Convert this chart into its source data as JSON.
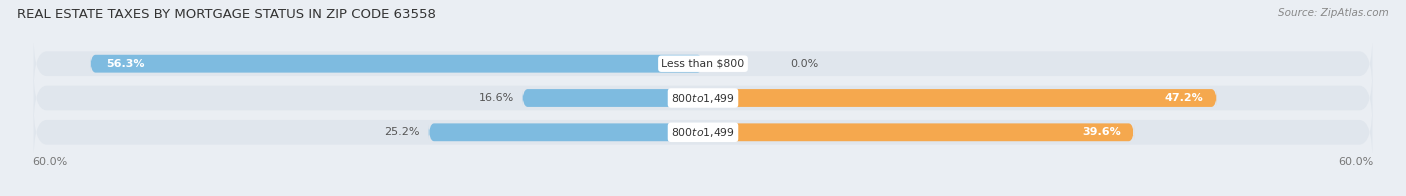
{
  "title": "Real Estate Taxes by Mortgage Status in Zip Code 63558",
  "source": "Source: ZipAtlas.com",
  "categories": [
    "Less than $800",
    "$800 to $1,499",
    "$800 to $1,499"
  ],
  "without_mortgage": [
    56.3,
    16.6,
    25.2
  ],
  "with_mortgage": [
    0.0,
    47.2,
    39.6
  ],
  "xlim": 60.0,
  "bar_color_without": "#7EBBE0",
  "bar_color_with": "#F5A84E",
  "bg_color": "#EAEEF3",
  "bar_bg_color": "#D8DFE8",
  "row_bg_color": "#E0E6ED",
  "title_fontsize": 9.5,
  "source_fontsize": 7.5,
  "bar_label_fontsize": 8,
  "category_fontsize": 7.8,
  "legend_fontsize": 8,
  "axis_label_fontsize": 8
}
